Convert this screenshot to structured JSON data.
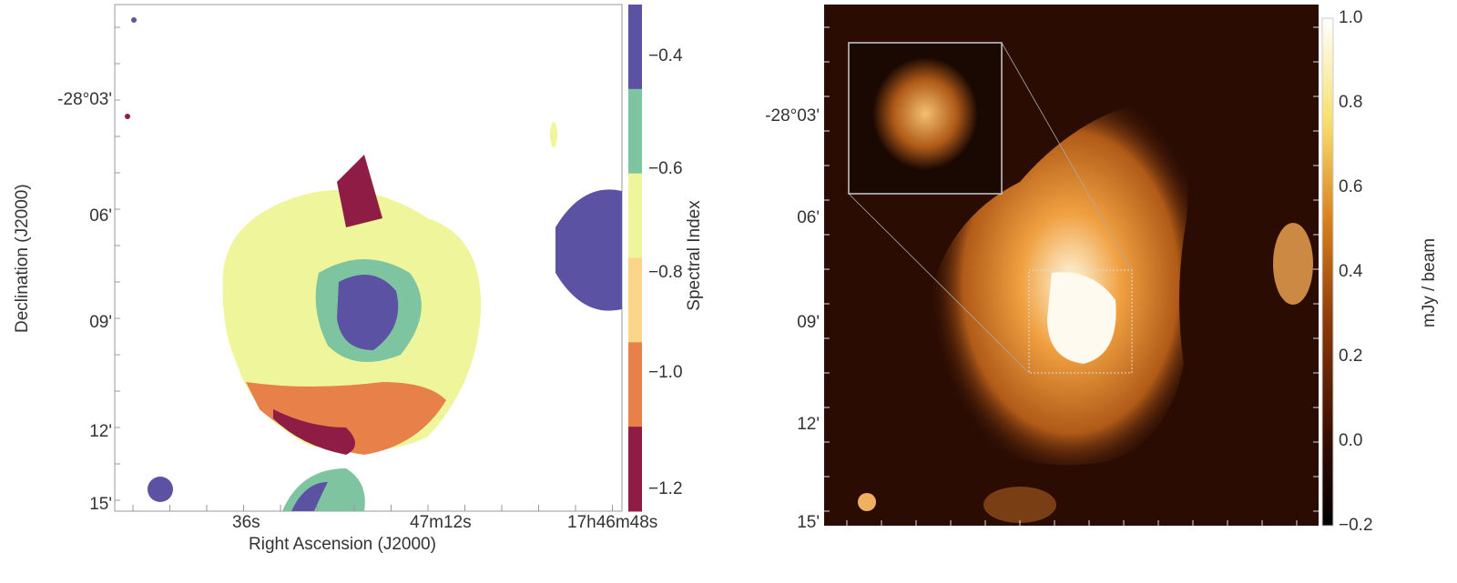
{
  "chart_data": [
    {
      "type": "heatmap",
      "xlabel": "Right Ascension (J2000)",
      "ylabel": "Declination (J2000)",
      "xticks": [
        "36s",
        "47m12s",
        "17h46m48s"
      ],
      "yticks": [
        "-28°03'",
        "06'",
        "09'",
        "12'",
        "15'"
      ],
      "colorbar": {
        "label": "Spectral Index",
        "ticks": [
          "-0.4",
          "-0.6",
          "-0.8",
          "-1.0",
          "-1.2"
        ],
        "colors": [
          "#5b52a3",
          "#7fc4a0",
          "#eef59a",
          "#fbd58a",
          "#e8804a",
          "#8e1c44"
        ]
      }
    },
    {
      "type": "heatmap",
      "xlabel": "",
      "ylabel": "",
      "yticks": [
        "-28°03'",
        "06'",
        "09'",
        "12'",
        "15'"
      ],
      "colorbar": {
        "label": "mJy / beam",
        "ticks": [
          "1.0",
          "0.8",
          "0.6",
          "0.4",
          "0.2",
          "0.0",
          "-0.2"
        ],
        "range": [
          -0.2,
          1.0
        ],
        "colors": [
          "#000000",
          "#5a1a05",
          "#b4560f",
          "#f0b040",
          "#fff6b0",
          "#ffffff"
        ]
      },
      "inset": true
    }
  ]
}
